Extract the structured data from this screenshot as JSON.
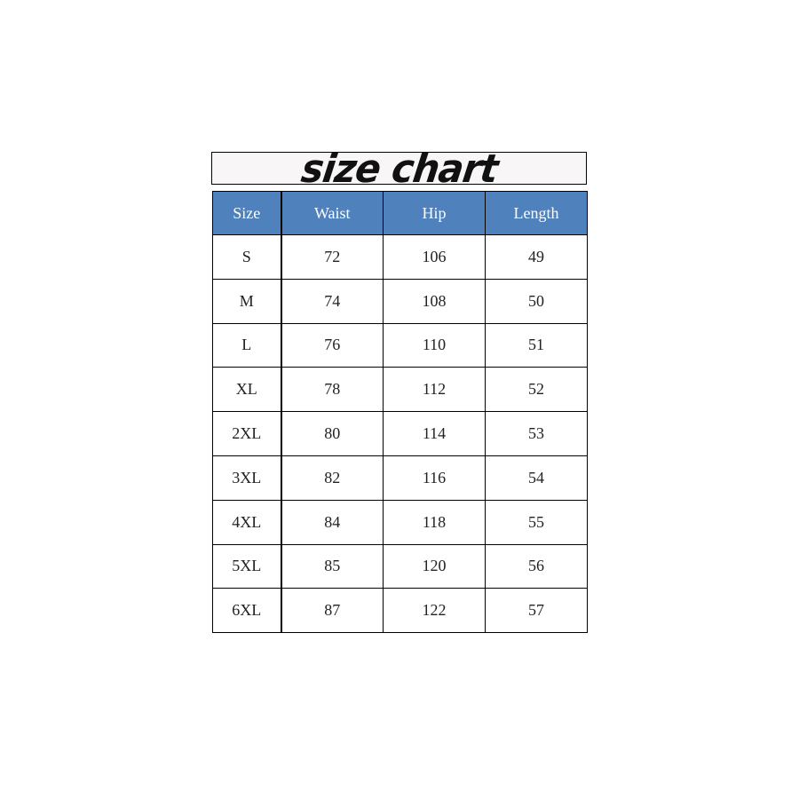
{
  "title": "size chart",
  "header_color": "#4f81bd",
  "columns": [
    "Size",
    "Waist",
    "Hip",
    "Length"
  ],
  "rows": [
    [
      "S",
      "72",
      "106",
      "49"
    ],
    [
      "M",
      "74",
      "108",
      "50"
    ],
    [
      "L",
      "76",
      "110",
      "51"
    ],
    [
      "XL",
      "78",
      "112",
      "52"
    ],
    [
      "2XL",
      "80",
      "114",
      "53"
    ],
    [
      "3XL",
      "82",
      "116",
      "54"
    ],
    [
      "4XL",
      "84",
      "118",
      "55"
    ],
    [
      "5XL",
      "85",
      "120",
      "56"
    ],
    [
      "6XL",
      "87",
      "122",
      "57"
    ]
  ]
}
